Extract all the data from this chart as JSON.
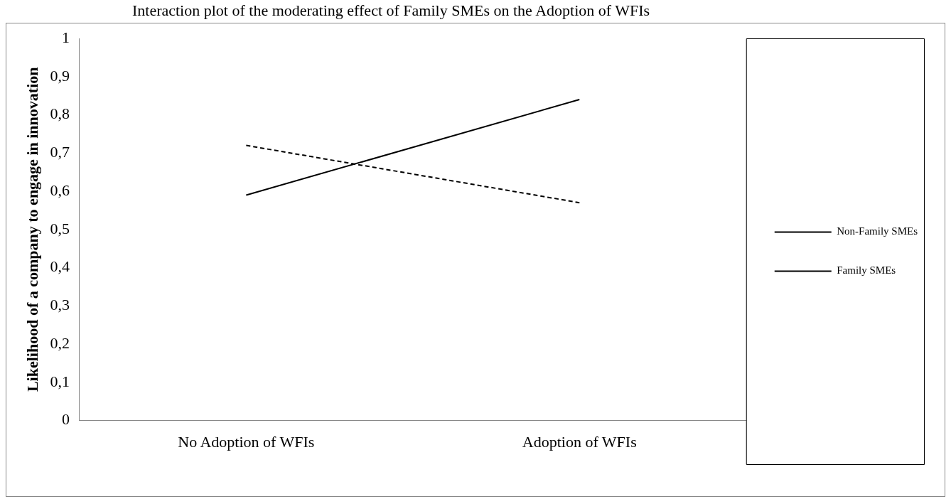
{
  "chart_data": {
    "type": "line",
    "title": "Interaction plot of the moderating effect of Family SMEs on the Adoption of WFIs",
    "ylabel": "Likelihood of a company to engage in innovation",
    "categories": [
      "No Adoption of WFIs",
      "Adoption of WFIs"
    ],
    "series": [
      {
        "name": "Non-Family SMEs",
        "color": "#000000",
        "values": [
          0.59,
          0.84
        ],
        "line_style": "solid"
      },
      {
        "name": "Family SMEs",
        "color": "#000000",
        "values": [
          0.72,
          0.57
        ],
        "line_style": "dashed"
      }
    ],
    "ylim": [
      0,
      1
    ],
    "yticks": [
      0,
      {
        "value": 0.1,
        "label": "0,1"
      },
      {
        "value": 0.2,
        "label": "0,2"
      },
      {
        "value": 0.3,
        "label": "0,3"
      },
      {
        "value": 0.4,
        "label": "0,4"
      },
      {
        "value": 0.5,
        "label": "0,5"
      },
      {
        "value": 0.6,
        "label": "0,6"
      },
      {
        "value": 0.7,
        "label": "0,7"
      },
      {
        "value": 0.8,
        "label": "0,8"
      },
      {
        "value": 0.9,
        "label": "0,9"
      },
      1
    ],
    "grid": false,
    "legend": "right",
    "marker": "none"
  }
}
